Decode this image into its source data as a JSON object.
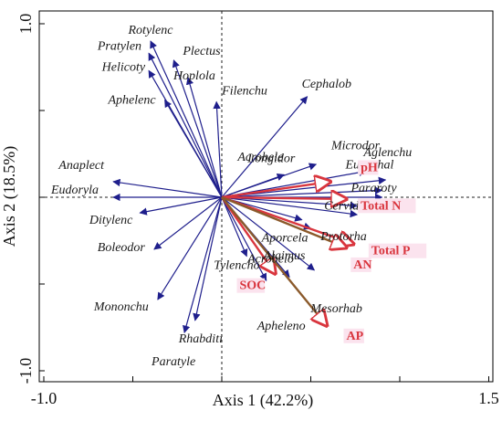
{
  "chart_data": {
    "type": "scatter",
    "subtype": "rda-biplot",
    "xlabel": "Axis 1 (42.2%)",
    "ylabel": "Axis 2 (18.5%)",
    "xlim": [
      -1.0,
      1.5
    ],
    "ylim": [
      -1.0,
      1.0
    ],
    "x_tick_labels": [
      {
        "value": -1.0,
        "label": "-1.0"
      },
      {
        "value": 1.5,
        "label": "1.5"
      }
    ],
    "y_tick_labels": [
      {
        "value": 1.0,
        "label": "1.0"
      },
      {
        "value": -1.0,
        "label": "-1.0"
      }
    ],
    "grid": false,
    "reference_lines": "dashed lines at x = 0 and y = 0",
    "species_arrow_color": "#1f1f8c",
    "env_arrow_colors": {
      "soil": "#d9363e",
      "nutrient": "#8b5a2b"
    },
    "label_colors": {
      "species": "#1a1a1a",
      "env": "#d9363e",
      "env_highlight": "#fbe3ee"
    },
    "species": [
      {
        "name": "Rotylenc",
        "x": -0.4,
        "y": 0.9
      },
      {
        "name": "Pratylen",
        "x": -0.41,
        "y": 0.83
      },
      {
        "name": "Plectus",
        "x": -0.27,
        "y": 0.79
      },
      {
        "name": "Helicoty",
        "x": -0.41,
        "y": 0.73
      },
      {
        "name": "Hoplola",
        "x": -0.19,
        "y": 0.69
      },
      {
        "name": "Filenchu",
        "x": -0.03,
        "y": 0.55
      },
      {
        "name": "Cephalob",
        "x": 0.48,
        "y": 0.58
      },
      {
        "name": "Aphelenc",
        "x": -0.32,
        "y": 0.56
      },
      {
        "name": "Anaplect",
        "x": -0.61,
        "y": 0.09
      },
      {
        "name": "Eudoryla",
        "x": -0.61,
        "y": 0.0
      },
      {
        "name": "Ditylenc",
        "x": -0.46,
        "y": -0.09
      },
      {
        "name": "Boleodor",
        "x": -0.38,
        "y": -0.3
      },
      {
        "name": "Mononchu",
        "x": -0.36,
        "y": -0.59
      },
      {
        "name": "Paratyle",
        "x": -0.21,
        "y": -0.78
      },
      {
        "name": "Rhabditi",
        "x": -0.15,
        "y": -0.71
      },
      {
        "name": "Tylencho",
        "x": 0.14,
        "y": -0.34
      },
      {
        "name": "Apheleno",
        "x": 0.25,
        "y": -0.48
      },
      {
        "name": "Acrobelo",
        "x": 0.38,
        "y": -0.46
      },
      {
        "name": "Mesorhab",
        "x": 0.52,
        "y": -0.42
      },
      {
        "name": "Longidor",
        "x": 0.35,
        "y": 0.13
      },
      {
        "name": "Acrobele",
        "x": 0.53,
        "y": 0.19
      },
      {
        "name": "Microdor",
        "x": 0.81,
        "y": 0.15
      },
      {
        "name": "Aglenchu",
        "x": 0.92,
        "y": 0.1
      },
      {
        "name": "Eucephal",
        "x": 0.9,
        "y": 0.04
      },
      {
        "name": "Pararoty",
        "x": 0.9,
        "y": 0.0
      },
      {
        "name": "Cervidel",
        "x": 0.76,
        "y": -0.05
      },
      {
        "name": "Protorha",
        "x": 0.76,
        "y": -0.1
      },
      {
        "name": "Aporcela",
        "x": 0.45,
        "y": -0.13
      },
      {
        "name": "Alaimus",
        "x": 0.5,
        "y": -0.18
      }
    ],
    "environment": [
      {
        "name": "pH",
        "x": 0.61,
        "y": 0.09,
        "group": "soil",
        "label_x": 0.78,
        "label_y": 0.15
      },
      {
        "name": "Total N",
        "x": 0.7,
        "y": -0.01,
        "group": "soil",
        "label_x": 0.78,
        "label_y": -0.07
      },
      {
        "name": "Total P",
        "x": 0.74,
        "y": -0.27,
        "group": "soil",
        "label_x": 0.84,
        "label_y": -0.33
      },
      {
        "name": "AN",
        "x": 0.7,
        "y": -0.29,
        "group": "nutrient",
        "label_x": 0.74,
        "label_y": -0.41
      },
      {
        "name": "SOC",
        "x": 0.3,
        "y": -0.44,
        "group": "soil",
        "label_x": 0.1,
        "label_y": -0.53
      },
      {
        "name": "AP",
        "x": 0.59,
        "y": -0.74,
        "group": "nutrient",
        "label_x": 0.7,
        "label_y": -0.82
      }
    ]
  }
}
